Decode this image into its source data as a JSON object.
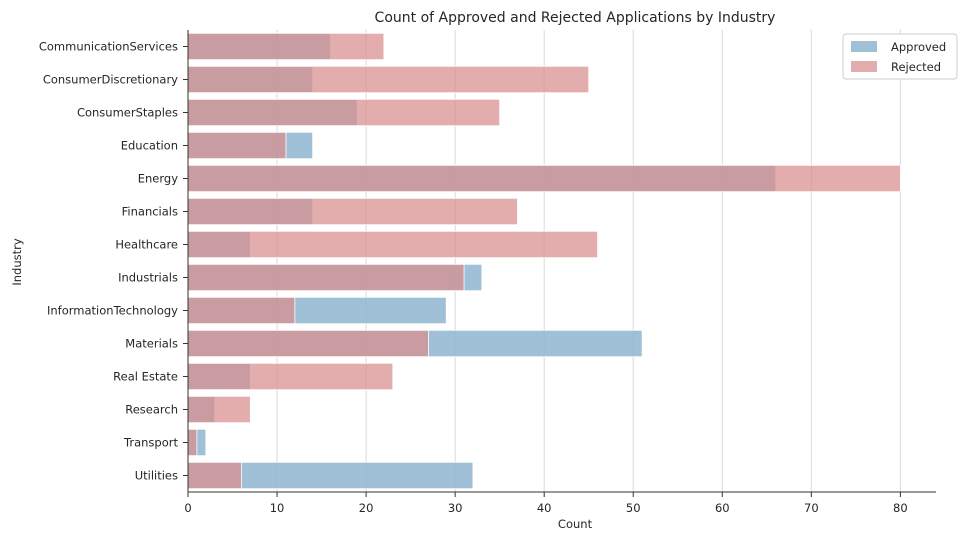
{
  "chart_data": {
    "type": "bar",
    "orientation": "horizontal",
    "title": "Count of Approved and Rejected Applications by Industry",
    "xlabel": "Count",
    "ylabel": "Industry",
    "xlim": [
      0,
      84
    ],
    "xticks": [
      0,
      10,
      20,
      30,
      40,
      50,
      60,
      70,
      80
    ],
    "grid": "vertical",
    "legend_position": "top-right",
    "categories": [
      "CommunicationServices",
      "ConsumerDiscretionary",
      "ConsumerStaples",
      "Education",
      "Energy",
      "Financials",
      "Healthcare",
      "Industrials",
      "InformationTechnology",
      "Materials",
      "Real Estate",
      "Research",
      "Transport",
      "Utilities"
    ],
    "series": [
      {
        "name": "Approved",
        "color": "#8fb5d1",
        "values": [
          16,
          14,
          19,
          14,
          66,
          14,
          7,
          33,
          29,
          51,
          7,
          3,
          2,
          32
        ]
      },
      {
        "name": "Rejected",
        "color": "#d88d8d",
        "values": [
          22,
          45,
          35,
          11,
          80,
          37,
          46,
          31,
          12,
          27,
          23,
          7,
          1,
          6
        ]
      }
    ]
  }
}
